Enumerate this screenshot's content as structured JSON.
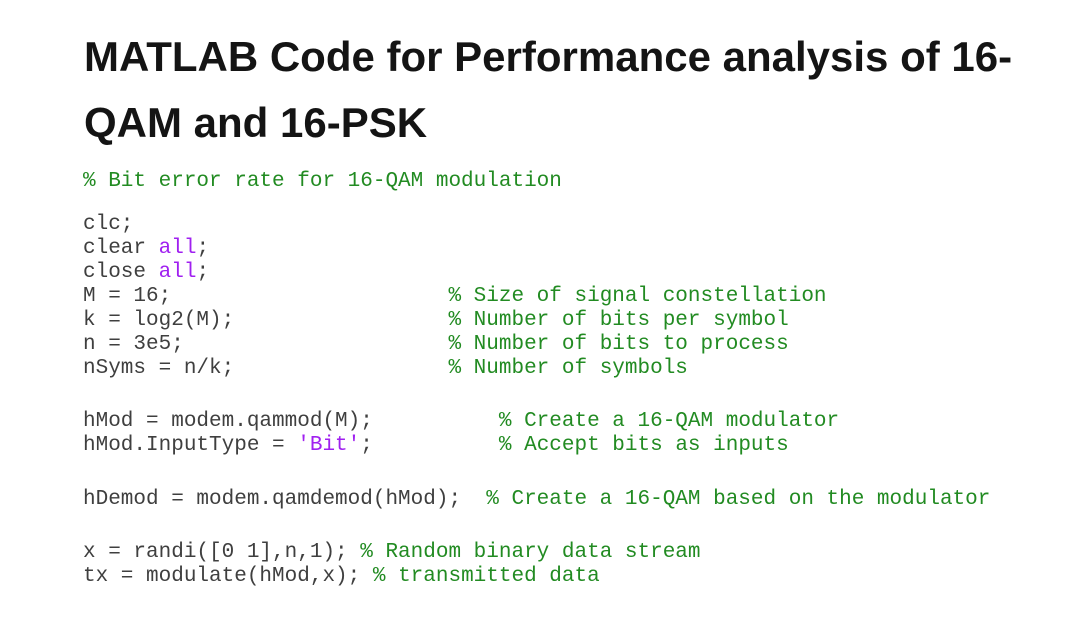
{
  "title": {
    "full": "MATLAB Code for Performance analysis of 16-QAM and 16-PSK",
    "lines": [
      "MATLAB Code for Performance analysis of 16-",
      "QAM and 16-PSK"
    ]
  },
  "colors": {
    "background": "#ffffff",
    "title_text": "#141414",
    "code_text": "#3f3f3f",
    "comment_green": "#228B22",
    "string_purple": "#A020F0"
  },
  "code": {
    "language": "matlab",
    "blocks": [
      {
        "lines": [
          [
            {
              "type": "comment",
              "text": "% Bit error rate for 16-QAM modulation"
            }
          ]
        ]
      },
      {
        "lines": [
          [
            {
              "type": "code",
              "text": "clc;"
            }
          ],
          [
            {
              "type": "code",
              "text": "clear "
            },
            {
              "type": "string",
              "text": "all"
            },
            {
              "type": "code",
              "text": ";"
            }
          ],
          [
            {
              "type": "code",
              "text": "close "
            },
            {
              "type": "string",
              "text": "all"
            },
            {
              "type": "code",
              "text": ";"
            }
          ],
          [
            {
              "type": "code",
              "text": "M = 16;                      "
            },
            {
              "type": "comment",
              "text": "% Size of signal constellation"
            }
          ],
          [
            {
              "type": "code",
              "text": "k = log2(M);                 "
            },
            {
              "type": "comment",
              "text": "% Number of bits per symbol"
            }
          ],
          [
            {
              "type": "code",
              "text": "n = 3e5;                     "
            },
            {
              "type": "comment",
              "text": "% Number of bits to process"
            }
          ],
          [
            {
              "type": "code",
              "text": "nSyms = n/k;                 "
            },
            {
              "type": "comment",
              "text": "% Number of symbols"
            }
          ]
        ]
      },
      {
        "lines": [
          [
            {
              "type": "code",
              "text": "hMod = modem.qammod(M);          "
            },
            {
              "type": "comment",
              "text": "% Create a 16-QAM modulator"
            }
          ],
          [
            {
              "type": "code",
              "text": "hMod.InputType = "
            },
            {
              "type": "string",
              "text": "'Bit'"
            },
            {
              "type": "code",
              "text": ";          "
            },
            {
              "type": "comment",
              "text": "% Accept bits as inputs"
            }
          ]
        ]
      },
      {
        "lines": [
          [
            {
              "type": "code",
              "text": "hDemod = modem.qamdemod(hMod);  "
            },
            {
              "type": "comment",
              "text": "% Create a 16-QAM based on the modulator"
            }
          ]
        ]
      },
      {
        "lines": [
          [
            {
              "type": "code",
              "text": "x = randi([0 1],n,1); "
            },
            {
              "type": "comment",
              "text": "% Random binary data stream"
            }
          ],
          [
            {
              "type": "code",
              "text": "tx = modulate(hMod,x); "
            },
            {
              "type": "comment",
              "text": "% transmitted data"
            }
          ]
        ]
      }
    ]
  }
}
